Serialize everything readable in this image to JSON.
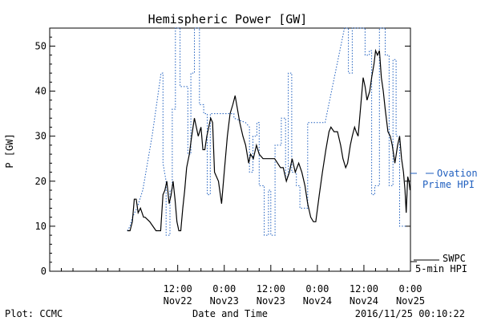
{
  "chart_data": {
    "type": "line",
    "title": "Hemispheric Power [GW]",
    "xlabel": "Date and Time",
    "ylabel": "P [GW]",
    "ylim": [
      0,
      54
    ],
    "y_ticks": [
      0,
      10,
      20,
      30,
      40,
      50
    ],
    "x_range_hours": [
      -21,
      72
    ],
    "x_ticks": [
      {
        "hour": 12,
        "time": "12:00",
        "date": "Nov22"
      },
      {
        "hour": 24,
        "time": "0:00",
        "date": "Nov23"
      },
      {
        "hour": 36,
        "time": "12:00",
        "date": "Nov23"
      },
      {
        "hour": 48,
        "time": "0:00",
        "date": "Nov24"
      },
      {
        "hour": 60,
        "time": "12:00",
        "date": "Nov24"
      },
      {
        "hour": 72,
        "time": "0:00",
        "date": "Nov25"
      }
    ],
    "grid": false,
    "series": [
      {
        "name": "Ovation Prime HPI",
        "legend_lines": [
          "Ovation",
          "Prime HPI"
        ],
        "style": "dotted",
        "color": "#1f5fbf",
        "points": [
          [
            -1,
            9
          ],
          [
            -0.3,
            10
          ],
          [
            0.3,
            12
          ],
          [
            1.5,
            14
          ],
          [
            3,
            18
          ],
          [
            5.4,
            30
          ],
          [
            7.7,
            44
          ],
          [
            8.2,
            44
          ],
          [
            8.2,
            24
          ],
          [
            9,
            20
          ],
          [
            9,
            8
          ],
          [
            10,
            8
          ],
          [
            10,
            18
          ],
          [
            10.6,
            18
          ],
          [
            10.6,
            36
          ],
          [
            11.4,
            36
          ],
          [
            11.4,
            55
          ],
          [
            12.6,
            55
          ],
          [
            12.6,
            41
          ],
          [
            14.6,
            41
          ],
          [
            14.6,
            26
          ],
          [
            15.4,
            26
          ],
          [
            15.4,
            44
          ],
          [
            16.3,
            44
          ],
          [
            16.3,
            55
          ],
          [
            17.6,
            55
          ],
          [
            17.6,
            37
          ],
          [
            18.7,
            37
          ],
          [
            18.7,
            35
          ],
          [
            19.6,
            35
          ],
          [
            19.6,
            17
          ],
          [
            20.4,
            17
          ],
          [
            20.4,
            35
          ],
          [
            26.5,
            35
          ],
          [
            26.5,
            34
          ],
          [
            29.5,
            33
          ],
          [
            30.5,
            32
          ],
          [
            30.5,
            22
          ],
          [
            31.4,
            22
          ],
          [
            31.4,
            30
          ],
          [
            32.4,
            30
          ],
          [
            32.4,
            33
          ],
          [
            33,
            33
          ],
          [
            33,
            19
          ],
          [
            34.3,
            19
          ],
          [
            34.3,
            8
          ],
          [
            35.4,
            8
          ],
          [
            35.4,
            18
          ],
          [
            36,
            18
          ],
          [
            36,
            8
          ],
          [
            37.1,
            8
          ],
          [
            37.1,
            28
          ],
          [
            38.7,
            28
          ],
          [
            38.7,
            34
          ],
          [
            39.8,
            34
          ],
          [
            39.8,
            21
          ],
          [
            40.5,
            21
          ],
          [
            40.5,
            44
          ],
          [
            41.4,
            44
          ],
          [
            41.4,
            22
          ],
          [
            42.6,
            22
          ],
          [
            42.6,
            19
          ],
          [
            43.5,
            19
          ],
          [
            43.5,
            14
          ],
          [
            45.5,
            14
          ],
          [
            45.5,
            33
          ],
          [
            50,
            33
          ],
          [
            55,
            55
          ],
          [
            56,
            55
          ],
          [
            56,
            44
          ],
          [
            57,
            44
          ],
          [
            57,
            55
          ],
          [
            60.3,
            55
          ],
          [
            60.3,
            48
          ],
          [
            61.4,
            48
          ],
          [
            61.4,
            49
          ],
          [
            62,
            49
          ],
          [
            62,
            17
          ],
          [
            62.8,
            17
          ],
          [
            62.8,
            19
          ],
          [
            64,
            19
          ],
          [
            64,
            55
          ],
          [
            65.5,
            55
          ],
          [
            65.5,
            48
          ],
          [
            66.5,
            48
          ],
          [
            66.5,
            19
          ],
          [
            67.5,
            19
          ],
          [
            67.5,
            47
          ],
          [
            68.3,
            47
          ],
          [
            68.3,
            30
          ],
          [
            69.2,
            30
          ],
          [
            69.2,
            10
          ],
          [
            70.3,
            10
          ],
          [
            70.8,
            10
          ]
        ]
      },
      {
        "name": "SWPC 5-min HPI",
        "legend_lines": [
          "SWPC",
          "5-min HPI"
        ],
        "style": "solid",
        "color": "#000000",
        "points": [
          [
            -1,
            9
          ],
          [
            -0.3,
            9
          ],
          [
            0.3,
            11
          ],
          [
            0.8,
            16
          ],
          [
            1.3,
            16
          ],
          [
            1.8,
            13
          ],
          [
            2.4,
            14
          ],
          [
            3.2,
            12
          ],
          [
            3.6,
            12
          ],
          [
            4.8,
            11
          ],
          [
            5.6,
            10
          ],
          [
            6.4,
            9
          ],
          [
            7.6,
            9
          ],
          [
            8.2,
            17
          ],
          [
            8.7,
            18
          ],
          [
            9.2,
            20
          ],
          [
            9.8,
            15
          ],
          [
            10.3,
            17
          ],
          [
            10.8,
            20
          ],
          [
            11.3,
            16
          ],
          [
            11.8,
            11
          ],
          [
            12.3,
            9
          ],
          [
            12.8,
            9
          ],
          [
            13.3,
            14
          ],
          [
            13.8,
            18
          ],
          [
            14.3,
            23
          ],
          [
            15,
            26
          ],
          [
            15.6,
            30
          ],
          [
            16.3,
            34
          ],
          [
            16.8,
            32
          ],
          [
            17.3,
            30
          ],
          [
            18,
            32
          ],
          [
            18.5,
            27
          ],
          [
            19,
            27
          ],
          [
            19.5,
            30
          ],
          [
            20,
            32
          ],
          [
            20.5,
            34
          ],
          [
            21,
            33
          ],
          [
            21.5,
            22
          ],
          [
            22.5,
            20
          ],
          [
            23.3,
            15
          ],
          [
            24,
            22
          ],
          [
            24.8,
            30
          ],
          [
            25.5,
            35
          ],
          [
            26.2,
            37
          ],
          [
            26.8,
            39
          ],
          [
            27.4,
            36
          ],
          [
            28,
            33
          ],
          [
            28.8,
            30
          ],
          [
            29.5,
            28
          ],
          [
            30.3,
            24
          ],
          [
            30.8,
            26
          ],
          [
            31.5,
            25
          ],
          [
            32.3,
            28
          ],
          [
            33,
            26
          ],
          [
            34,
            25
          ],
          [
            35,
            25
          ],
          [
            36,
            25
          ],
          [
            37,
            25
          ],
          [
            38.5,
            23
          ],
          [
            39.2,
            23
          ],
          [
            40,
            20
          ],
          [
            40.8,
            22
          ],
          [
            41.5,
            25
          ],
          [
            42.3,
            22
          ],
          [
            43.2,
            24
          ],
          [
            44,
            22
          ],
          [
            44.8,
            19
          ],
          [
            45.5,
            15
          ],
          [
            46.3,
            12
          ],
          [
            47,
            11
          ],
          [
            47.6,
            11
          ],
          [
            48.5,
            17
          ],
          [
            49.3,
            22
          ],
          [
            50.2,
            27
          ],
          [
            51,
            31
          ],
          [
            51.5,
            32
          ],
          [
            52.3,
            31
          ],
          [
            53.2,
            31
          ],
          [
            54,
            28
          ],
          [
            54.6,
            25
          ],
          [
            55.3,
            23
          ],
          [
            55.8,
            24
          ],
          [
            56.5,
            28
          ],
          [
            57,
            30
          ],
          [
            57.6,
            32
          ],
          [
            58,
            31
          ],
          [
            58.5,
            30
          ],
          [
            59.2,
            37
          ],
          [
            59.8,
            43
          ],
          [
            60.3,
            41
          ],
          [
            60.8,
            38
          ],
          [
            61.5,
            40
          ],
          [
            62,
            43
          ],
          [
            62.6,
            46
          ],
          [
            63,
            49
          ],
          [
            63.5,
            48
          ],
          [
            64,
            49
          ],
          [
            64.5,
            43
          ],
          [
            65,
            40
          ],
          [
            65.5,
            36
          ],
          [
            66.2,
            31
          ],
          [
            66.8,
            30
          ],
          [
            67.3,
            28
          ],
          [
            68,
            24
          ],
          [
            68.7,
            28
          ],
          [
            69.2,
            30
          ],
          [
            69.7,
            25
          ],
          [
            70.2,
            22
          ],
          [
            70.6,
            18
          ],
          [
            70.9,
            13
          ],
          [
            71.3,
            21
          ],
          [
            71.6,
            20
          ],
          [
            71.9,
            18
          ]
        ]
      }
    ],
    "legend": "right"
  },
  "footer": {
    "left": "Plot: CCMC",
    "right": "2016/11/25 00:10:22"
  }
}
